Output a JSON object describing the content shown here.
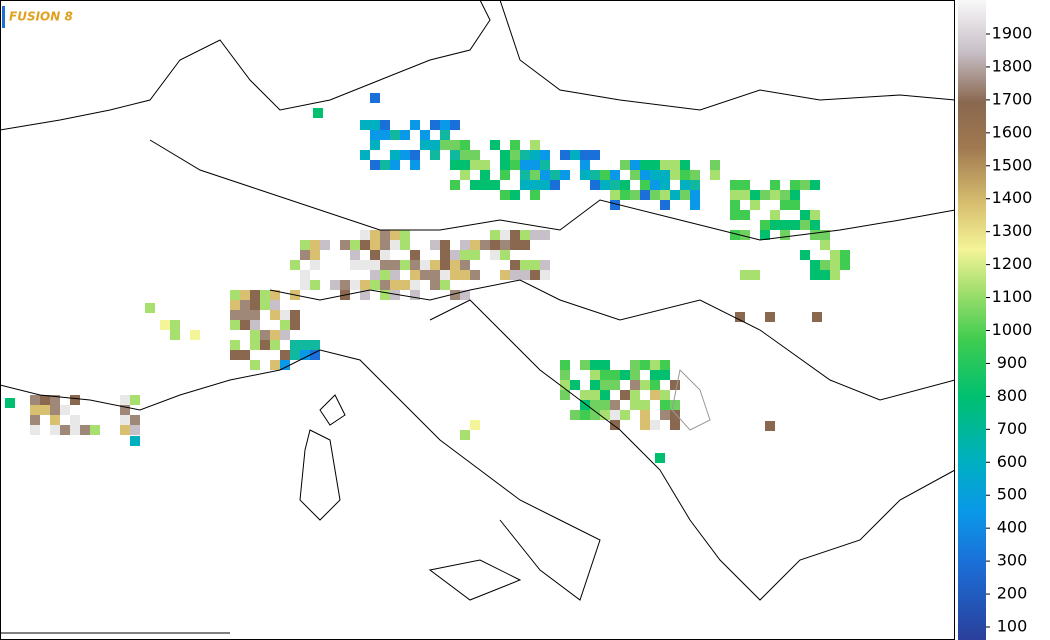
{
  "header": {
    "title": "FUSION 8"
  },
  "colorbar": {
    "ticks": [
      100,
      200,
      300,
      400,
      500,
      600,
      700,
      800,
      900,
      1000,
      1100,
      1200,
      1300,
      1400,
      1500,
      1600,
      1700,
      1800,
      1900
    ]
  }
}
